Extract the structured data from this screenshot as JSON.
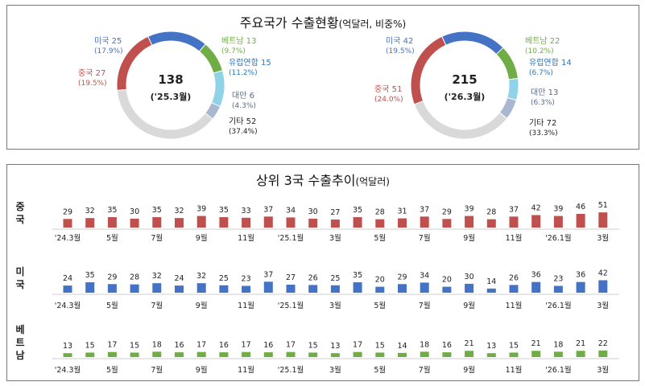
{
  "top": {
    "title": "주요국가 수출현황",
    "subtitle": "(억달러, 비중%)",
    "donuts": [
      {
        "total": "138",
        "period": "('25.3월)",
        "slices": [
          {
            "name": "미국",
            "value": 25,
            "share": "(17.9%)",
            "color": "#4472C4"
          },
          {
            "name": "베트남",
            "value": 13,
            "share": "(9.7%)",
            "color": "#70AD47"
          },
          {
            "name": "유럽연합",
            "value": 15,
            "share": "(11.2%)",
            "color": "#8FD3E8"
          },
          {
            "name": "대만",
            "value": 6,
            "share": "(4.3%)",
            "color": "#A9B7D0"
          },
          {
            "name": "기타",
            "value": 52,
            "share": "(37.4%)",
            "color": "#D9D9D9"
          },
          {
            "name": "중국",
            "value": 27,
            "share": "(19.5%)",
            "color": "#C0504D"
          }
        ]
      },
      {
        "total": "215",
        "period": "('26.3월)",
        "slices": [
          {
            "name": "미국",
            "value": 42,
            "share": "(19.5%)",
            "color": "#4472C4"
          },
          {
            "name": "베트남",
            "value": 22,
            "share": "(10.2%)",
            "color": "#70AD47"
          },
          {
            "name": "유럽연합",
            "value": 14,
            "share": "(6.7%)",
            "color": "#8FD3E8"
          },
          {
            "name": "대만",
            "value": 13,
            "share": "(6.3%)",
            "color": "#A9B7D0"
          },
          {
            "name": "기타",
            "value": 72,
            "share": "(33.3%)",
            "color": "#D9D9D9"
          },
          {
            "name": "중국",
            "value": 51,
            "share": "(24.0%)",
            "color": "#C0504D"
          }
        ]
      }
    ]
  },
  "bottom": {
    "title": "상위 3국 수출추이",
    "subtitle": "(억달러)"
  },
  "chart_data": [
    {
      "type": "pie",
      "title": "주요국가 수출현황",
      "center_label": "138",
      "period": "('25.3월)",
      "categories": [
        "미국",
        "베트남",
        "유럽연합",
        "대만",
        "기타",
        "중국"
      ],
      "values": [
        25,
        13,
        15,
        6,
        52,
        27
      ],
      "shares": [
        "(17.9%)",
        "(9.7%)",
        "(11.2%)",
        "(4.3%)",
        "(37.4%)",
        "(19.5%)"
      ]
    },
    {
      "type": "pie",
      "title": "주요국가 수출현황",
      "center_label": "215",
      "period": "('26.3월)",
      "categories": [
        "미국",
        "베트남",
        "유럽연합",
        "대만",
        "기타",
        "중국"
      ],
      "values": [
        42,
        22,
        14,
        13,
        72,
        51
      ],
      "shares": [
        "(19.5%)",
        "(10.2%)",
        "(6.7%)",
        "(6.3%)",
        "(33.3%)",
        "(24.0%)"
      ]
    },
    {
      "type": "bar",
      "title": "상위 3국 수출추이",
      "x_tick_labels": [
        "'24.3월",
        "5월",
        "7월",
        "9월",
        "11월",
        "'25.1월",
        "3월",
        "5월",
        "7월",
        "9월",
        "11월",
        "'26.1월",
        "3월"
      ],
      "series": [
        {
          "name": "중국",
          "color": "#C0504D",
          "values": [
            29,
            32,
            35,
            30,
            35,
            32,
            39,
            35,
            33,
            37,
            34,
            30,
            27,
            35,
            28,
            31,
            37,
            29,
            39,
            28,
            37,
            42,
            39,
            46,
            51
          ]
        },
        {
          "name": "미국",
          "color": "#4472C4",
          "values": [
            24,
            35,
            29,
            28,
            32,
            24,
            32,
            25,
            23,
            37,
            27,
            26,
            25,
            35,
            20,
            29,
            34,
            20,
            30,
            14,
            26,
            36,
            23,
            36,
            42
          ]
        },
        {
          "name": "베트남",
          "color": "#70AD47",
          "values": [
            13,
            15,
            17,
            15,
            18,
            16,
            17,
            16,
            17,
            16,
            17,
            15,
            13,
            17,
            15,
            14,
            18,
            16,
            21,
            13,
            15,
            21,
            18,
            21,
            22
          ]
        }
      ]
    }
  ]
}
